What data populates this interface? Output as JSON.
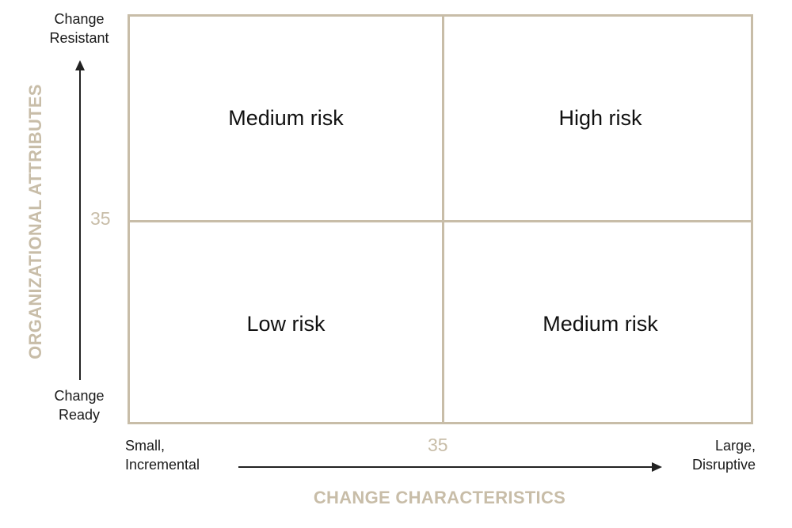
{
  "y_axis": {
    "title": "ORGANIZATIONAL ATTRIBUTES",
    "top_label": "Change\nResistant",
    "top_label_line1": "Change",
    "top_label_line2": "Resistant",
    "bottom_label_line1": "Change",
    "bottom_label_line2": "Ready",
    "threshold": "35"
  },
  "x_axis": {
    "title": "CHANGE CHARACTERISTICS",
    "left_label_line1": "Small,",
    "left_label_line2": "Incremental",
    "right_label_line1": "Large,",
    "right_label_line2": "Disruptive",
    "threshold": "35"
  },
  "quadrants": {
    "top_left": "Medium risk",
    "top_right": "High risk",
    "bottom_left": "Low risk",
    "bottom_right": "Medium risk"
  },
  "colors": {
    "accent": "#c8bda8",
    "text": "#111111",
    "arrow": "#222222"
  }
}
